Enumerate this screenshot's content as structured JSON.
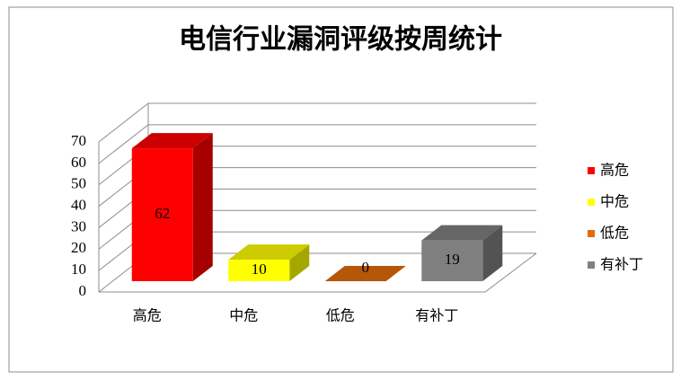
{
  "chart_data": {
    "type": "bar3d",
    "title": "电信行业漏洞评级按周统计",
    "categories": [
      "高危",
      "中危",
      "低危",
      "有补丁"
    ],
    "values": [
      62,
      10,
      0,
      19
    ],
    "colors": [
      "#ff0000",
      "#ffff00",
      "#e46c0a",
      "#808080"
    ],
    "ylim": [
      0,
      70
    ],
    "yticks": [
      0,
      10,
      20,
      30,
      40,
      50,
      60,
      70
    ],
    "grid": true,
    "legend": "right"
  }
}
